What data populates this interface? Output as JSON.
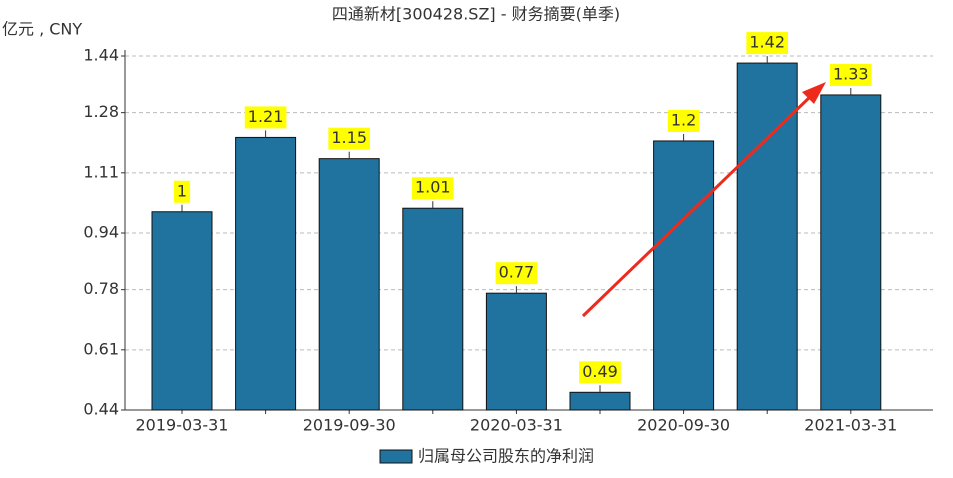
{
  "chart_data": {
    "type": "bar",
    "title": "四通新材[300428.SZ] - 财务摘要(单季)",
    "y_label": "亿元 , CNY",
    "categories": [
      "2019-03-31",
      null,
      "2019-09-30",
      null,
      "2020-03-31",
      null,
      "2020-09-30",
      null,
      "2021-03-31"
    ],
    "series": [
      {
        "name": "归属母公司股东的净利润",
        "color": "#21739f",
        "values": [
          1,
          1.21,
          1.15,
          1.01,
          0.77,
          0.49,
          1.2,
          1.42,
          1.33
        ]
      }
    ],
    "ylim": [
      0.44,
      1.44
    ],
    "yticks": [
      0.44,
      0.61,
      0.78,
      0.94,
      1.11,
      1.28,
      1.44
    ],
    "grid": true,
    "legend": "bottom"
  }
}
